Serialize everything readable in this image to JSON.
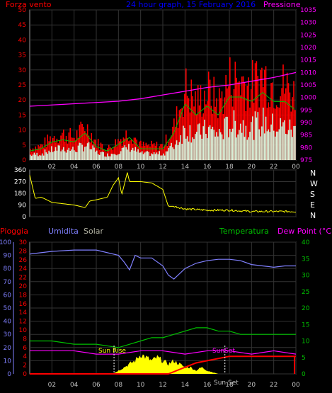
{
  "title": "24 hour graph, 15 February 2016",
  "top_labels": {
    "left": "Forza vento",
    "center": "24 hour graph, 15 February 2016",
    "right": "Pressione"
  },
  "compass": [
    "N",
    "W",
    "S",
    "E",
    "N"
  ],
  "bottom_labels": {
    "pioggia": "Pioggia",
    "umidita": "Umidita",
    "solar": "Solar",
    "temperatura": "Temperatura",
    "dewpoint": "Dew Point (°C)"
  },
  "annotations": {
    "sunrise": "Sun Rise",
    "sunset": "SunSet",
    "sunlabel2": "Sun Set"
  },
  "colors": {
    "wind_gust": "#ff0000",
    "wind_avg": "#ffffff",
    "wind_avg2": "#00c000",
    "pressure": "#ff00ff",
    "direction": "#ffff00",
    "humidity": "#8080ff",
    "temperature": "#00c000",
    "dewpoint": "#ff00ff",
    "rain": "#ff0000",
    "solar": "#ffff00",
    "axis_left": "#ff0000",
    "axis_right_top": "#ff00ff",
    "axis_right_bottom": "#00c000",
    "axis_left_bottom": "#8080ff"
  },
  "chart_data": [
    {
      "type": "line",
      "title": "24 hour graph, 15 February 2016",
      "x_ticks": [
        "02",
        "04",
        "06",
        "08",
        "10",
        "12",
        "14",
        "16",
        "18",
        "20",
        "22",
        "00"
      ],
      "left_ticks": [
        "0",
        "5",
        "10",
        "15",
        "20",
        "25",
        "30",
        "35",
        "40",
        "45",
        "50"
      ],
      "right_ticks": [
        "975",
        "980",
        "985",
        "990",
        "995",
        "1000",
        "1005",
        "1010",
        "1015",
        "1020",
        "1025",
        "1030",
        "1035"
      ],
      "ylim_left": [
        0,
        50
      ],
      "ylim_right": [
        975,
        1035
      ],
      "series": [
        {
          "name": "Forza vento",
          "hours": [
            0,
            1,
            2,
            3,
            4,
            5,
            6,
            7,
            8,
            9,
            10,
            11,
            12,
            13,
            14,
            15,
            16,
            17,
            18,
            19,
            20,
            21,
            22,
            23,
            24
          ],
          "values": [
            4,
            5,
            8,
            9,
            8,
            12,
            6,
            4,
            7,
            10,
            5,
            5,
            5,
            12,
            25,
            20,
            24,
            20,
            28,
            28,
            26,
            30,
            26,
            26,
            22
          ]
        },
        {
          "name": "Pressione",
          "hours": [
            0,
            2,
            4,
            6,
            8,
            10,
            12,
            14,
            16,
            18,
            20,
            22,
            24
          ],
          "values": [
            996.5,
            997.0,
            997.5,
            998.0,
            998.5,
            999.5,
            1001.0,
            1002.5,
            1004.0,
            1005.0,
            1006.5,
            1008.0,
            1010.0
          ]
        }
      ]
    },
    {
      "type": "line",
      "title": "",
      "left_ticks": [
        "0",
        "90",
        "180",
        "270",
        "360"
      ],
      "ylim": [
        0,
        360
      ],
      "series": [
        {
          "name": "",
          "hours": [
            0,
            0.5,
            1,
            1.3,
            2,
            3,
            4,
            5,
            5.4,
            6,
            7,
            7.5,
            8,
            8.3,
            8.8,
            9,
            10,
            11,
            12,
            12.5,
            13,
            14,
            16,
            18,
            20,
            22,
            24
          ],
          "values": [
            320,
            140,
            150,
            140,
            110,
            100,
            90,
            70,
            120,
            130,
            150,
            240,
            300,
            170,
            340,
            270,
            270,
            260,
            210,
            80,
            80,
            60,
            50,
            50,
            40,
            40,
            40
          ]
        }
      ]
    },
    {
      "type": "line",
      "title": "",
      "x_ticks": [
        "02",
        "04",
        "06",
        "08",
        "10",
        "12",
        "14",
        "16",
        "18",
        "20",
        "22",
        "00"
      ],
      "left_ticks": [
        "0",
        "10",
        "20",
        "30",
        "40",
        "50",
        "60",
        "70",
        "80",
        "90",
        "100"
      ],
      "left2_ticks": [
        "0",
        "2",
        "4",
        "6",
        "8",
        "10",
        "12",
        "14",
        "16",
        "18",
        "20",
        "22",
        "24",
        "26",
        "28",
        "30"
      ],
      "right_ticks": [
        "0",
        "5",
        "10",
        "15",
        "20",
        "25",
        "30",
        "35",
        "40"
      ],
      "ylim_humidity": [
        0,
        100
      ],
      "ylim_temp": [
        0,
        40
      ],
      "series": [
        {
          "name": "Umidita",
          "hours": [
            0,
            2,
            4,
            6,
            8,
            8.5,
            9,
            9.5,
            10,
            11,
            12,
            12.5,
            13,
            14,
            15,
            16,
            17,
            18,
            19,
            20,
            21,
            22,
            23,
            24
          ],
          "values": [
            91,
            93,
            94,
            94,
            90,
            85,
            79,
            90,
            88,
            88,
            82,
            75,
            72,
            80,
            84,
            86,
            87,
            87,
            86,
            83,
            82,
            81,
            82,
            82
          ]
        },
        {
          "name": "Temperatura",
          "hours": [
            0,
            2,
            4,
            6,
            8,
            9,
            10,
            11,
            12,
            13,
            14,
            15,
            16,
            17,
            18,
            19,
            20,
            21,
            22,
            23,
            24
          ],
          "values": [
            10,
            10,
            9,
            9,
            8,
            9,
            10,
            11,
            11,
            12,
            13,
            14,
            14,
            13,
            13,
            12,
            12,
            12,
            12,
            12,
            12
          ]
        },
        {
          "name": "Dew Point",
          "hours": [
            0,
            2,
            4,
            6,
            8,
            10,
            12,
            14,
            16,
            18,
            20,
            22,
            24
          ],
          "values": [
            7,
            7,
            7,
            6,
            6,
            7,
            7,
            6,
            7,
            7,
            6,
            7,
            6
          ]
        },
        {
          "name": "Pioggia",
          "hours": [
            0,
            12.5,
            13,
            14,
            15,
            16,
            17,
            18,
            19,
            20,
            24
          ],
          "values": [
            0,
            0,
            0.5,
            1.5,
            2.5,
            3,
            3.5,
            4,
            4,
            4,
            4
          ]
        },
        {
          "name": "Solar",
          "hours": [
            0,
            7.5,
            8,
            8.5,
            9,
            9.5,
            10,
            10.5,
            11,
            11.5,
            12,
            12.5,
            13,
            13.5,
            14,
            14.5,
            15,
            15.5,
            16,
            16.5,
            17,
            24
          ],
          "values": [
            0,
            0,
            1,
            2,
            3,
            4,
            6,
            5,
            4,
            5,
            4,
            3,
            4,
            3,
            2,
            2,
            1,
            2,
            1,
            0.5,
            0,
            0
          ]
        }
      ]
    }
  ]
}
